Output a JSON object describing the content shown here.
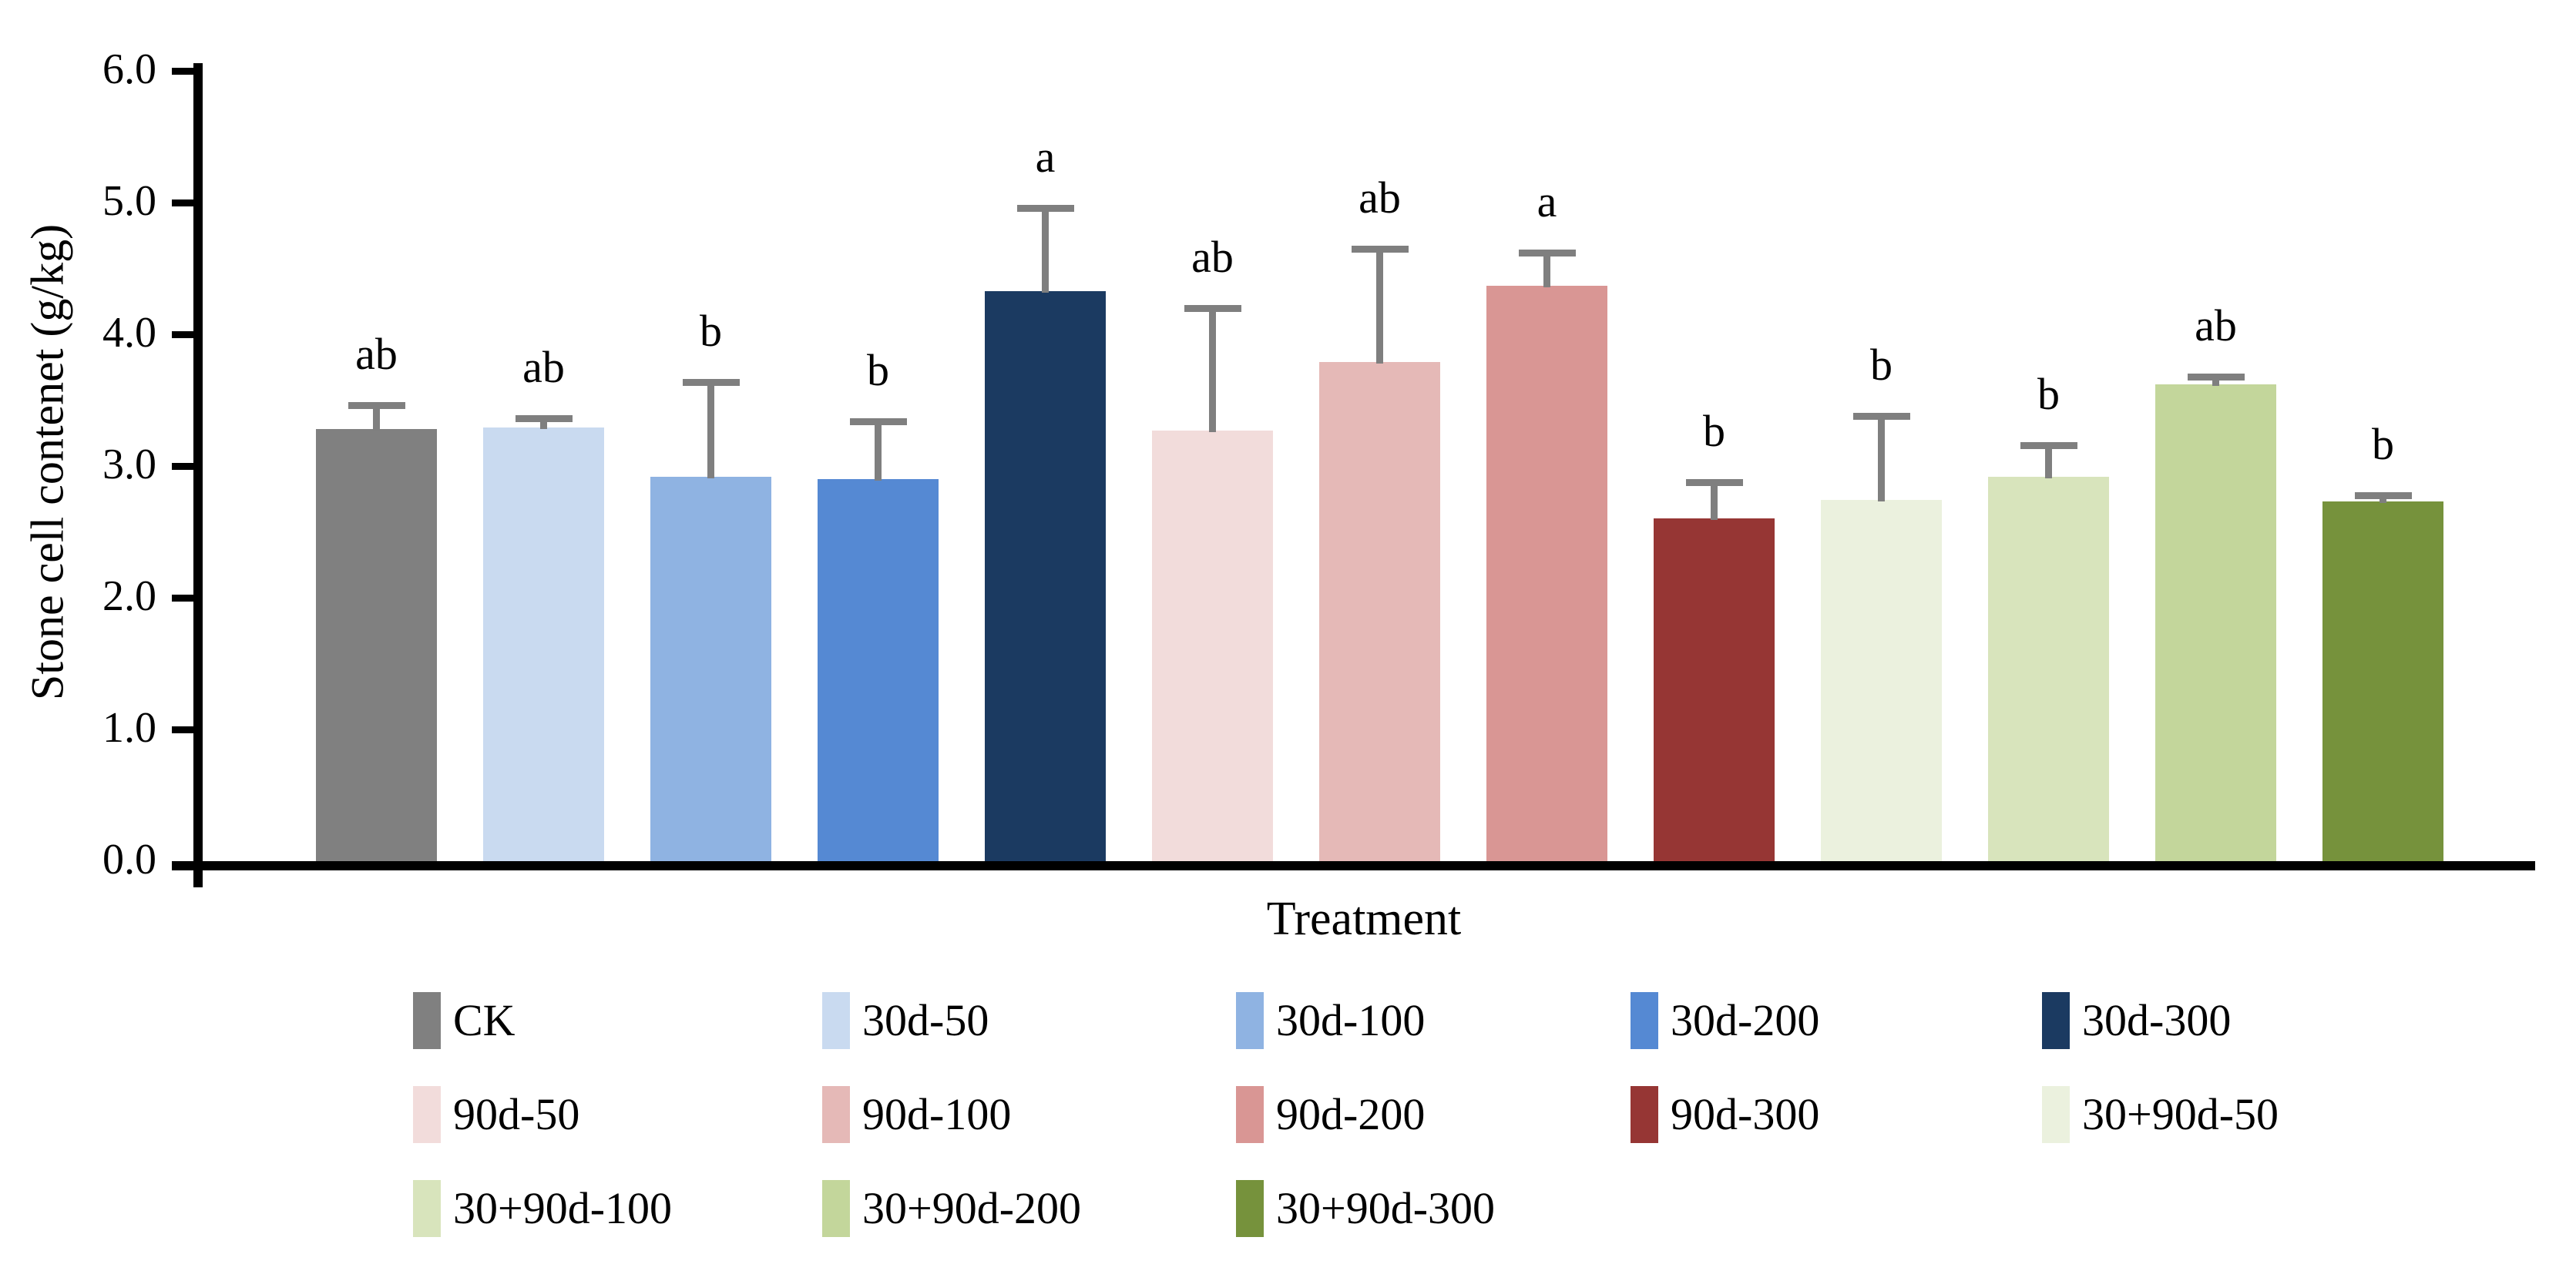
{
  "chart_data": {
    "type": "bar",
    "title": "",
    "xlabel": "Treatment",
    "ylabel": "Stone cell contenet (g/kg)",
    "ylim": [
      0.0,
      6.0
    ],
    "ytick_step": 1.0,
    "ytick_labels": [
      "0.0",
      "1.0",
      "2.0",
      "3.0",
      "4.0",
      "5.0",
      "6.0"
    ],
    "grid": false,
    "legend_position": "bottom",
    "legend_row_counts": [
      5,
      5,
      3
    ],
    "categories": [
      "CK",
      "30d-50",
      "30d-100",
      "30d-200",
      "30d-300",
      "90d-50",
      "90d-100",
      "90d-200",
      "90d-300",
      "30+90d-50",
      "30+90d-100",
      "30+90d-200",
      "30+90d-300"
    ],
    "series": [
      {
        "name": "Stone cell content",
        "values": [
          3.28,
          3.29,
          2.92,
          2.9,
          4.33,
          3.27,
          3.79,
          4.37,
          2.6,
          2.74,
          2.92,
          3.62,
          2.73
        ],
        "errors_upper": [
          0.18,
          0.07,
          0.72,
          0.44,
          0.63,
          0.93,
          0.86,
          0.25,
          0.28,
          0.64,
          0.24,
          0.06,
          0.05
        ],
        "sig_letters": [
          "ab",
          "ab",
          "b",
          "b",
          "a",
          "ab",
          "ab",
          "a",
          "b",
          "b",
          "b",
          "ab",
          "b"
        ]
      }
    ],
    "bar_colors": [
      "#808080",
      "#C9DAF0",
      "#8FB3E2",
      "#5589D3",
      "#1B3A61",
      "#F2DCDB",
      "#E5B9B7",
      "#D99694",
      "#963634",
      "#EBF1DE",
      "#D8E4BC",
      "#C3D69B",
      "#76923C"
    ],
    "error_bar_color": "#7F7F7F",
    "axis_color": "#000000"
  }
}
